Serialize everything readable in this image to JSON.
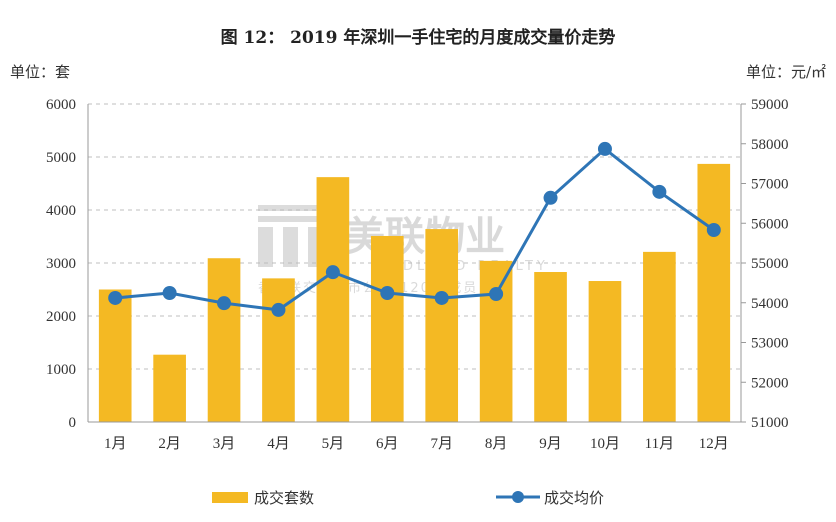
{
  "chart_data": {
    "type": "bar+line",
    "title": "图 12：  2019 年深圳一手住宅的月度成交量价走势",
    "left_unit": "单位：套",
    "right_unit": "单位：元/㎡",
    "categories": [
      "1月",
      "2月",
      "3月",
      "4月",
      "5月",
      "6月",
      "7月",
      "8月",
      "9月",
      "10月",
      "11月",
      "12月"
    ],
    "series": [
      {
        "name": "成交套数",
        "type": "bar",
        "axis": "left",
        "color": "#F4B923",
        "values": [
          2500,
          1270,
          3090,
          2710,
          4620,
          3510,
          3640,
          3040,
          2830,
          2660,
          3210,
          4870
        ]
      },
      {
        "name": "成交均价",
        "type": "line",
        "axis": "right",
        "color": "#2E75B6",
        "values": [
          54120,
          54245,
          53990,
          53820,
          54770,
          54245,
          54120,
          54220,
          56640,
          57870,
          56790,
          55830
        ]
      }
    ],
    "left_axis": {
      "ylim": [
        0,
        6000
      ],
      "ticks": [
        "0",
        "1000",
        "2000",
        "3000",
        "4000",
        "5000",
        "6000"
      ]
    },
    "right_axis": {
      "ylim": [
        51000,
        59000
      ],
      "ticks": [
        "51000",
        "52000",
        "53000",
        "54000",
        "55000",
        "56000",
        "57000",
        "58000",
        "59000"
      ]
    },
    "grid": "horizontal dashed",
    "legend": "bottom",
    "watermark": {
      "logo": "美联物业",
      "sub": "MIDLAND REALTY",
      "line": "香港联交所上市公司(1200)成员"
    }
  }
}
